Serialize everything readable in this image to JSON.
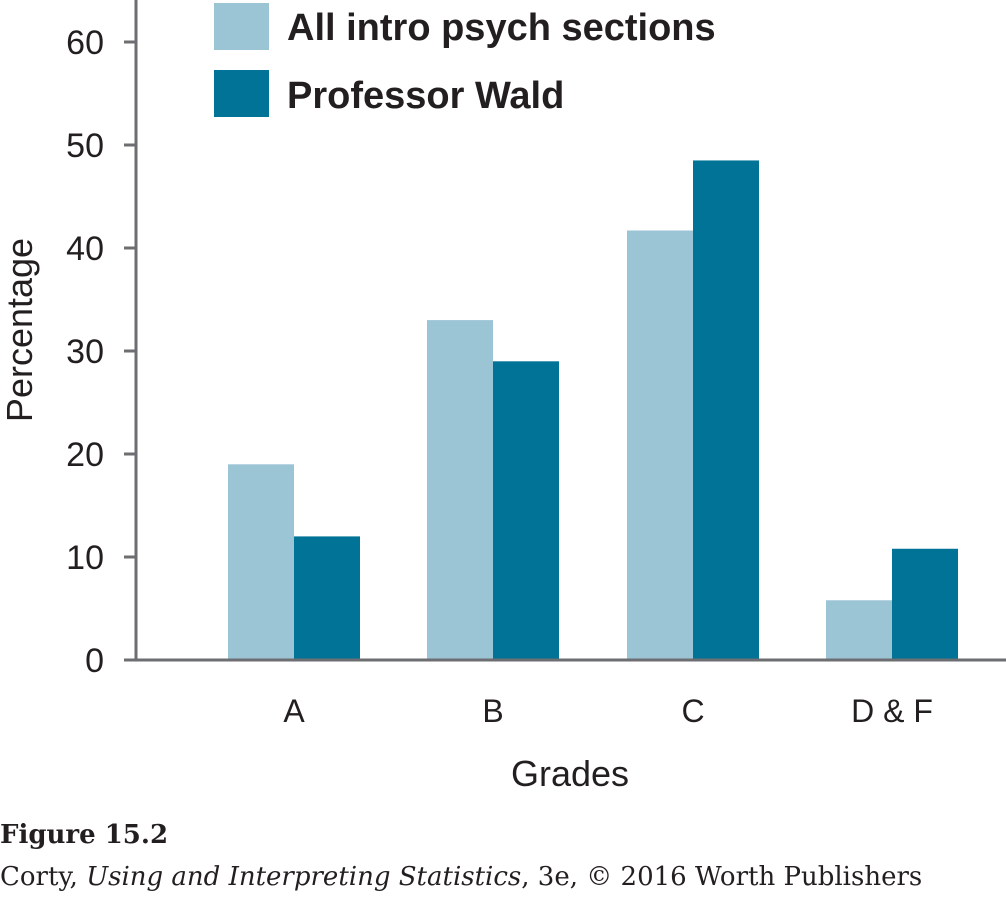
{
  "chart_data": {
    "type": "bar",
    "categories": [
      "A",
      "B",
      "C",
      "D & F"
    ],
    "series": [
      {
        "name": "All intro psych sections",
        "values": [
          19,
          33,
          41.7,
          5.8
        ],
        "color": "#9bc4d5"
      },
      {
        "name": "Professor Wald",
        "values": [
          12,
          29,
          48.5,
          10.8
        ],
        "color": "#007396"
      }
    ],
    "yticks": [
      0,
      10,
      20,
      30,
      40,
      50,
      60
    ],
    "ylim": [
      0,
      60
    ],
    "xlabel": "Grades",
    "ylabel": "Percentage",
    "legend_position": "top",
    "grid": false
  },
  "caption": {
    "figure_label": "Figure 15.2",
    "credit_author": "Corty, ",
    "credit_title": "Using and Interpreting Statistics",
    "credit_rest": ", 3e, © 2016 Worth Publishers"
  }
}
